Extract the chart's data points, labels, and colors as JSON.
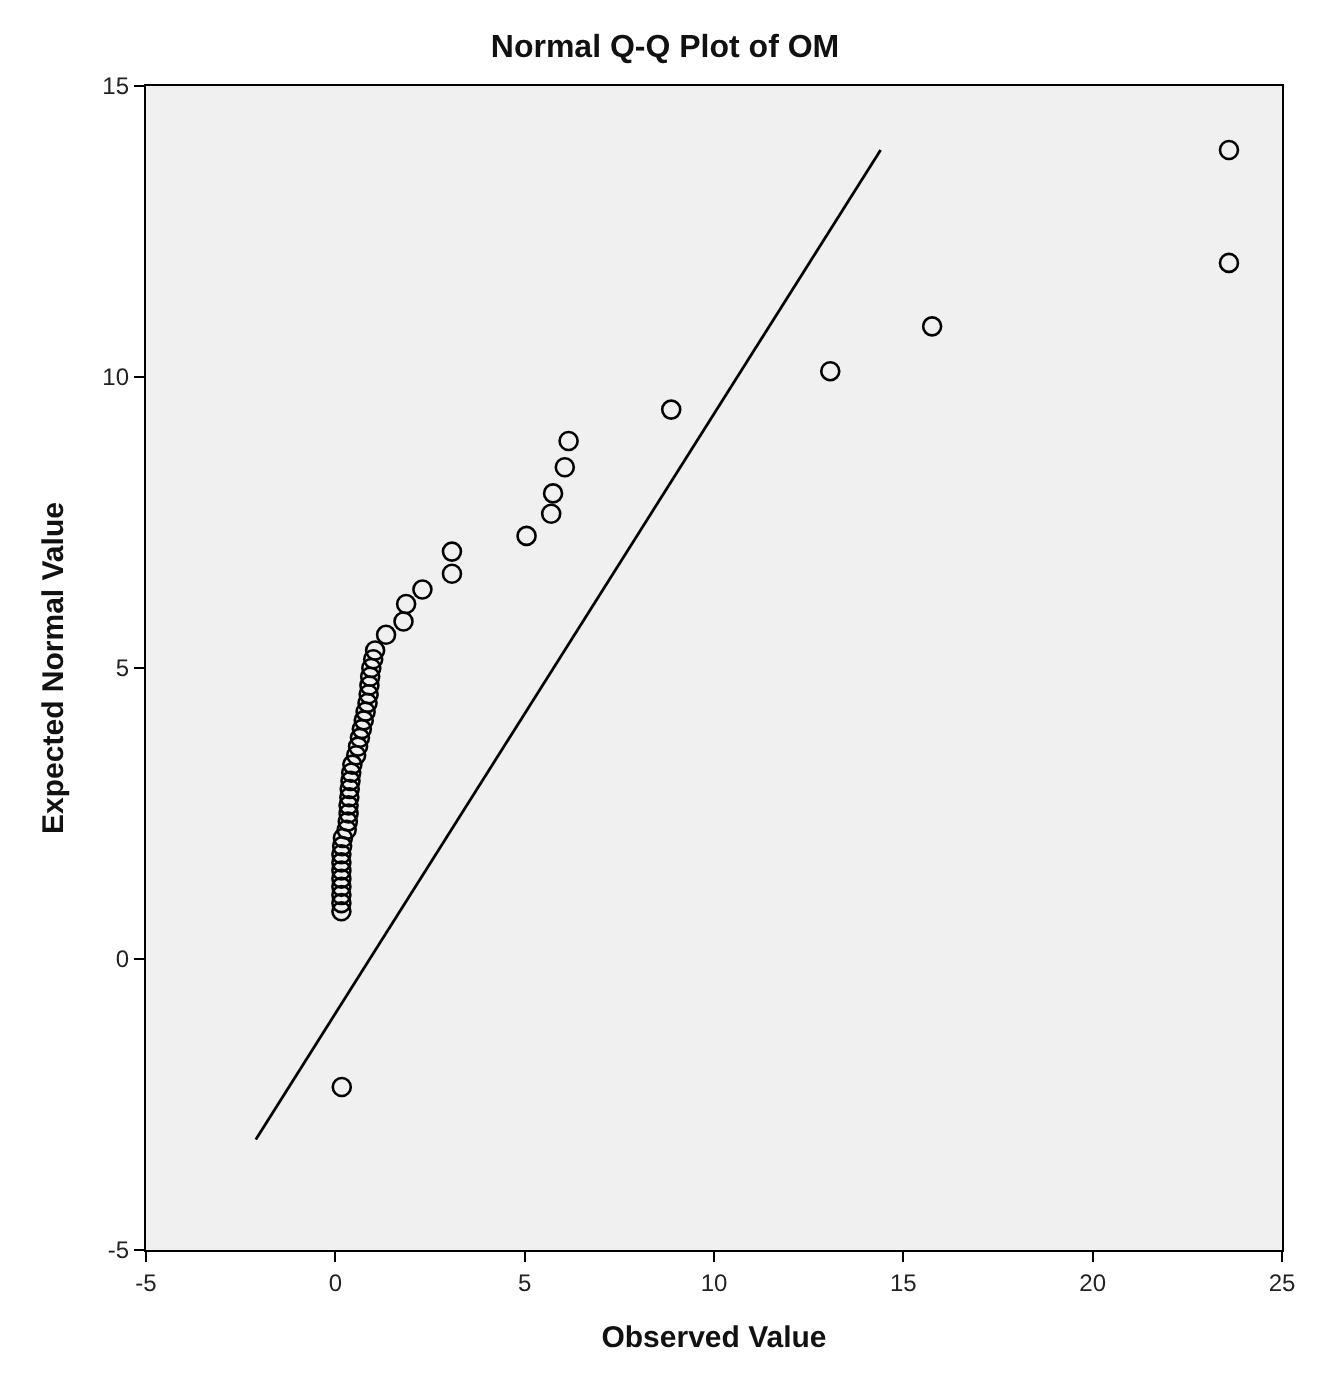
{
  "chart_data": {
    "type": "scatter",
    "title": "Normal Q-Q Plot of OM",
    "xlabel": "Observed Value",
    "ylabel": "Expected Normal Value",
    "xlim": [
      -5,
      25
    ],
    "xticks": [
      -5,
      0,
      5,
      10,
      15,
      20,
      25
    ],
    "ylim": [
      -5,
      15
    ],
    "yticks": [
      -5,
      0,
      5,
      10,
      15
    ],
    "grid": false,
    "series": [
      {
        "marker": "circle",
        "color": "#000000",
        "x": [
          0.17,
          0.16,
          0.16,
          0.16,
          0.16,
          0.16,
          0.16,
          0.16,
          0.16,
          0.18,
          0.2,
          0.3,
          0.33,
          0.35,
          0.35,
          0.37,
          0.38,
          0.4,
          0.42,
          0.45,
          0.55,
          0.6,
          0.65,
          0.7,
          0.75,
          0.8,
          0.85,
          0.88,
          0.9,
          0.92,
          0.95,
          1.0,
          1.05,
          1.34,
          1.8,
          1.87,
          2.3,
          3.08,
          3.08,
          5.05,
          5.7,
          5.75,
          6.06,
          6.16,
          8.87,
          13.07,
          15.76,
          23.6,
          23.6
        ],
        "values": [
          -2.2,
          0.82,
          0.96,
          1.1,
          1.24,
          1.38,
          1.52,
          1.66,
          1.8,
          1.94,
          2.08,
          2.22,
          2.36,
          2.5,
          2.64,
          2.78,
          2.92,
          3.06,
          3.2,
          3.34,
          3.5,
          3.65,
          3.8,
          3.95,
          4.1,
          4.25,
          4.4,
          4.55,
          4.7,
          4.85,
          5.0,
          5.15,
          5.3,
          5.57,
          5.8,
          6.1,
          6.35,
          6.62,
          7.0,
          7.27,
          7.65,
          8.0,
          8.45,
          8.9,
          9.44,
          10.1,
          10.87,
          11.96,
          13.9
        ]
      },
      {
        "type": "line",
        "marker": "none",
        "line_style": "solid",
        "color": "#000000",
        "x": [
          -2.1,
          14.4
        ],
        "values": [
          -3.1,
          13.9
        ]
      }
    ]
  }
}
